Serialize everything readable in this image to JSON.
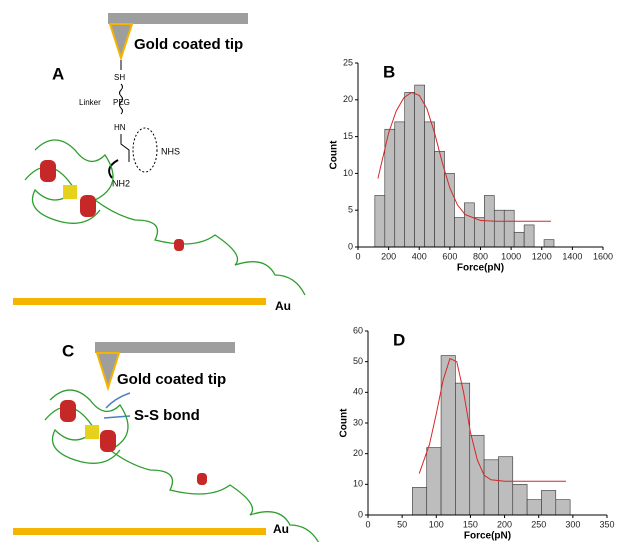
{
  "panel_a": {
    "label": "A",
    "tip": "Gold coated tip",
    "thiol": "SH",
    "linker": "Linker",
    "peg": "PEG",
    "amide": "HN",
    "reagent": "NHS",
    "amine": "NH2",
    "surface": "Au"
  },
  "panel_c": {
    "label": "C",
    "tip": "Gold coated tip",
    "bond": "S-S bond",
    "surface": "Au"
  },
  "chart_data": [
    {
      "type": "histogram",
      "panel": "B",
      "x_label": "Force(pN)",
      "y_label": "Count",
      "color": "#bdbdbd",
      "bins": [
        110,
        175,
        240,
        305,
        370,
        435,
        500,
        565,
        630,
        695,
        760,
        825,
        890,
        955,
        1020,
        1085,
        1150,
        1215,
        1280
      ],
      "values": [
        7,
        16,
        17,
        21,
        22,
        17,
        13,
        10,
        4,
        6,
        4,
        7,
        5,
        5,
        2,
        3,
        0,
        1
      ],
      "fit": {
        "color": "#d62728",
        "x": [
          130,
          200,
          250,
          300,
          350,
          400,
          450,
          500,
          550,
          600,
          650,
          700,
          800,
          900,
          1000,
          1100,
          1260
        ],
        "y": [
          9.3,
          15.5,
          18.5,
          20.3,
          21,
          20.6,
          18.8,
          15.5,
          11.5,
          8,
          5.7,
          4.4,
          3.6,
          3.5,
          3.5,
          3.5,
          3.5
        ]
      },
      "xlim": [
        0,
        1600
      ],
      "xticks": [
        0,
        200,
        400,
        600,
        800,
        1000,
        1200,
        1400,
        1600
      ],
      "ylim": [
        0,
        25
      ],
      "yticks": [
        0,
        5,
        10,
        15,
        20,
        25
      ]
    },
    {
      "type": "histogram",
      "panel": "D",
      "x_label": "Force(pN)",
      "y_label": "Count",
      "color": "#bdbdbd",
      "bins": [
        65,
        86,
        107,
        128,
        149,
        170,
        191,
        212,
        233,
        254,
        275,
        296
      ],
      "values": [
        9,
        22,
        52,
        43,
        26,
        18,
        19,
        10,
        5,
        8,
        5
      ],
      "fit": {
        "color": "#d62728",
        "x": [
          75,
          90,
          100,
          110,
          120,
          130,
          140,
          150,
          160,
          170,
          180,
          200,
          250,
          290
        ],
        "y": [
          13.5,
          23,
          33,
          44,
          51,
          50,
          40,
          27,
          18,
          13,
          11.5,
          11,
          11,
          11
        ]
      },
      "xlim": [
        0,
        350
      ],
      "xticks": [
        0,
        50,
        100,
        150,
        200,
        250,
        300,
        350
      ],
      "ylim": [
        0,
        60
      ],
      "yticks": [
        0,
        10,
        20,
        30,
        40,
        50,
        60
      ]
    }
  ]
}
